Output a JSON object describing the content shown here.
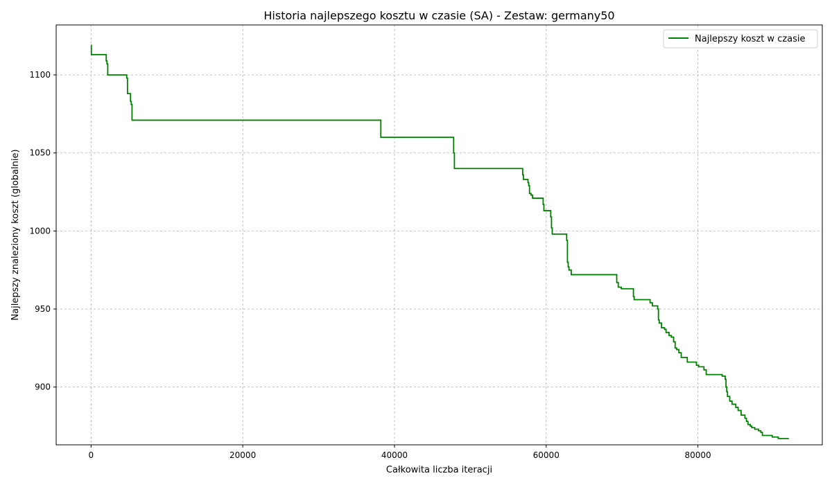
{
  "chart_data": {
    "type": "line",
    "title": "Historia najlepszego kosztu w czasie (SA) - Zestaw: germany50",
    "xlabel": "Całkowita liczba iteracji",
    "ylabel": "Najlepszy znaleziony koszt (globalnie)",
    "xlim": [
      -4600,
      96400
    ],
    "ylim": [
      863,
      1132
    ],
    "xticks": [
      0,
      20000,
      40000,
      60000,
      80000
    ],
    "yticks": [
      900,
      950,
      1000,
      1050,
      1100
    ],
    "grid": true,
    "legend_position": "top-right",
    "series": [
      {
        "name": "Najlepszy koszt w czasie",
        "color": "#008000",
        "step": "post",
        "points": [
          [
            0,
            1119
          ],
          [
            40,
            1113
          ],
          [
            1900,
            1113
          ],
          [
            2000,
            1109
          ],
          [
            2100,
            1107
          ],
          [
            2200,
            1100
          ],
          [
            4600,
            1100
          ],
          [
            4700,
            1098
          ],
          [
            4800,
            1088
          ],
          [
            5100,
            1088
          ],
          [
            5200,
            1083
          ],
          [
            5300,
            1081
          ],
          [
            5400,
            1071
          ],
          [
            38100,
            1071
          ],
          [
            38200,
            1060
          ],
          [
            47700,
            1060
          ],
          [
            47800,
            1050
          ],
          [
            47900,
            1040
          ],
          [
            56800,
            1040
          ],
          [
            56900,
            1036
          ],
          [
            57000,
            1033
          ],
          [
            57500,
            1033
          ],
          [
            57600,
            1031
          ],
          [
            57700,
            1029
          ],
          [
            57800,
            1024
          ],
          [
            58000,
            1023
          ],
          [
            58200,
            1021
          ],
          [
            59500,
            1021
          ],
          [
            59600,
            1017
          ],
          [
            59700,
            1013
          ],
          [
            60500,
            1013
          ],
          [
            60600,
            1009
          ],
          [
            60700,
            1002
          ],
          [
            60800,
            998
          ],
          [
            62600,
            998
          ],
          [
            62700,
            994
          ],
          [
            62800,
            980
          ],
          [
            62900,
            977
          ],
          [
            63000,
            975
          ],
          [
            63300,
            972
          ],
          [
            69100,
            972
          ],
          [
            69300,
            967
          ],
          [
            69500,
            964
          ],
          [
            69900,
            963
          ],
          [
            71400,
            963
          ],
          [
            71500,
            958
          ],
          [
            71600,
            956
          ],
          [
            73500,
            956
          ],
          [
            73700,
            954
          ],
          [
            74000,
            952
          ],
          [
            74600,
            952
          ],
          [
            74700,
            950
          ],
          [
            74800,
            943
          ],
          [
            74900,
            941
          ],
          [
            75200,
            938
          ],
          [
            75600,
            937
          ],
          [
            75800,
            935
          ],
          [
            76200,
            933
          ],
          [
            76500,
            932
          ],
          [
            76800,
            929
          ],
          [
            77000,
            925
          ],
          [
            77200,
            924
          ],
          [
            77500,
            922
          ],
          [
            77800,
            919
          ],
          [
            78600,
            916
          ],
          [
            79800,
            914
          ],
          [
            80100,
            913
          ],
          [
            80800,
            911
          ],
          [
            81100,
            908
          ],
          [
            83200,
            907
          ],
          [
            83600,
            905
          ],
          [
            83700,
            900
          ],
          [
            83800,
            897
          ],
          [
            83900,
            894
          ],
          [
            84200,
            891
          ],
          [
            84500,
            889
          ],
          [
            85000,
            887
          ],
          [
            85300,
            885
          ],
          [
            85700,
            882
          ],
          [
            86200,
            880
          ],
          [
            86400,
            878
          ],
          [
            86600,
            876
          ],
          [
            86900,
            875
          ],
          [
            87100,
            874
          ],
          [
            87500,
            873
          ],
          [
            88000,
            872
          ],
          [
            88300,
            871
          ],
          [
            88500,
            869
          ],
          [
            89800,
            868
          ],
          [
            90600,
            867
          ],
          [
            92000,
            867
          ]
        ]
      }
    ]
  }
}
